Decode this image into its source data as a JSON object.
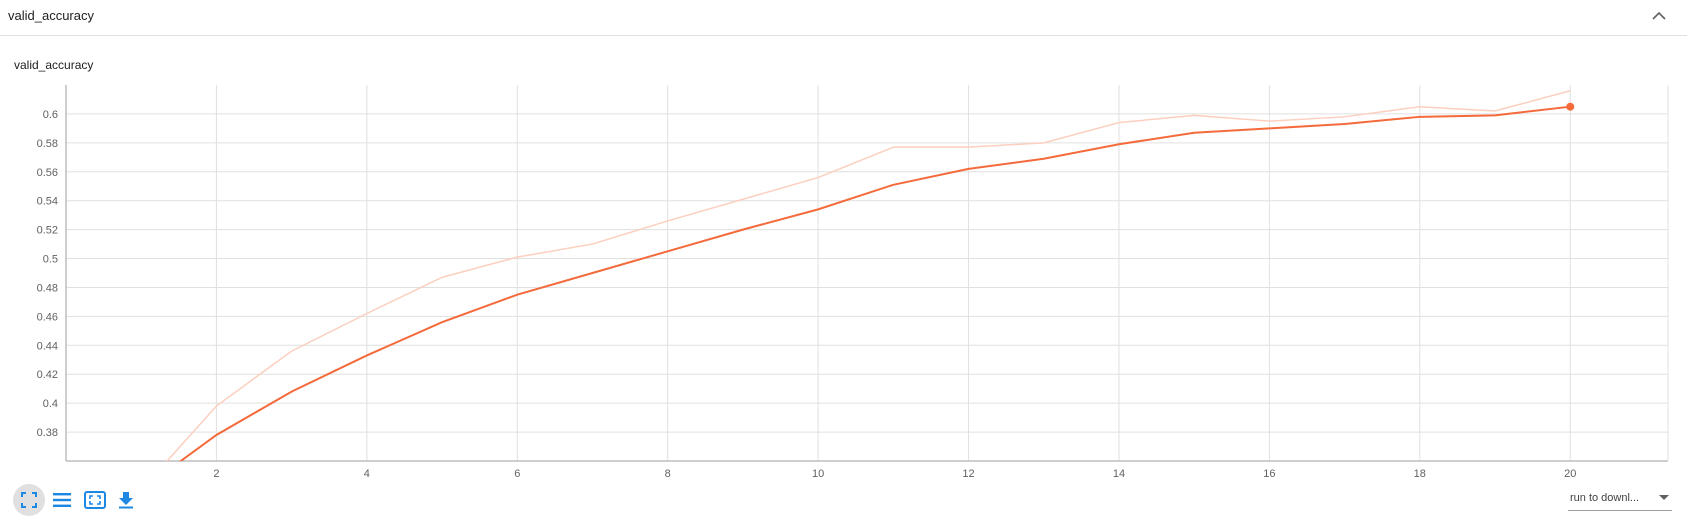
{
  "header": {
    "title": "valid_accuracy"
  },
  "card": {
    "title": "valid_accuracy"
  },
  "toolbar": {
    "items": [
      {
        "name": "fit-domain",
        "icon": "expand-icon",
        "active": true
      },
      {
        "name": "toggle-log-scale",
        "icon": "list-icon"
      },
      {
        "name": "fit-to-data",
        "icon": "fit-icon"
      },
      {
        "name": "download-data",
        "icon": "download-icon"
      }
    ]
  },
  "run_select": {
    "value": "run to downl..."
  },
  "colors": {
    "smoothed": "#f46a3b",
    "raw": "#fccfbf",
    "icon": "#1e88e5",
    "grid": "#e0e0e0"
  },
  "chart_data": {
    "type": "line",
    "title": "valid_accuracy",
    "xlim": [
      0,
      21.3
    ],
    "ylim": [
      0.36,
      0.62
    ],
    "xticks": [
      2,
      4,
      6,
      8,
      10,
      12,
      14,
      16,
      18,
      20
    ],
    "yticks": [
      0.38,
      0.4,
      0.42,
      0.44,
      0.46,
      0.48,
      0.5,
      0.52,
      0.54,
      0.56,
      0.58,
      0.6
    ],
    "grid": true,
    "series": [
      {
        "style": "raw",
        "x": [
          1,
          2,
          3,
          4,
          5,
          6,
          7,
          8,
          9,
          10,
          11,
          12,
          13,
          14,
          15,
          16,
          17,
          18,
          19,
          20
        ],
        "y": [
          0.34,
          0.398,
          0.436,
          0.462,
          0.487,
          0.501,
          0.51,
          0.526,
          0.541,
          0.556,
          0.577,
          0.577,
          0.58,
          0.594,
          0.599,
          0.595,
          0.598,
          0.605,
          0.602,
          0.616
        ]
      },
      {
        "style": "smoothed",
        "x": [
          1,
          2,
          3,
          4,
          5,
          6,
          7,
          8,
          9,
          10,
          11,
          12,
          13,
          14,
          15,
          16,
          17,
          18,
          19,
          20
        ],
        "y": [
          0.34,
          0.378,
          0.408,
          0.433,
          0.456,
          0.475,
          0.49,
          0.505,
          0.52,
          0.534,
          0.551,
          0.562,
          0.569,
          0.579,
          0.587,
          0.59,
          0.593,
          0.598,
          0.599,
          0.605
        ]
      }
    ]
  }
}
